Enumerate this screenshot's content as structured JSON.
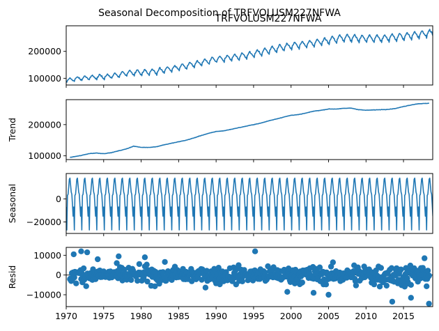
{
  "figure": {
    "suptitle": "Seasonal Decomposition of TRFVOLUSM227NFWA"
  },
  "chart_data": [
    {
      "type": "line",
      "title": "TRFVOLUSM227NFWA",
      "ylabel": "",
      "x_range": [
        1970,
        2018.9
      ],
      "ylim": [
        75000,
        295000
      ],
      "yticks": [
        100000,
        200000
      ],
      "ytick_labels": [
        "100000",
        "200000"
      ],
      "series": [
        {
          "x": [
            1970,
            1972,
            1974,
            1976,
            1978,
            1980,
            1982,
            1985,
            1988,
            1990,
            1993,
            1995,
            1998,
            2000,
            2003,
            2005,
            2007,
            2009,
            2012,
            2015,
            2018.8
          ],
          "values": [
            92000,
            100000,
            104000,
            108000,
            118000,
            122000,
            125000,
            140000,
            158000,
            170000,
            180000,
            190000,
            210000,
            220000,
            230000,
            240000,
            250000,
            248000,
            248000,
            255000,
            268000
          ],
          "seasonal_amplitude": [
            14000,
            16000,
            18000,
            18000,
            20000,
            22000,
            22000,
            22000,
            24000,
            24000,
            24000,
            26000,
            26000,
            26000,
            26000,
            28000,
            28000,
            28000,
            28000,
            28000,
            28000
          ]
        }
      ]
    },
    {
      "type": "line",
      "title": "",
      "ylabel": "Trend",
      "x_range": [
        1970,
        2018.9
      ],
      "ylim": [
        88000,
        280000
      ],
      "yticks": [
        100000,
        200000
      ],
      "ytick_labels": [
        "100000",
        "200000"
      ],
      "series": [
        {
          "x": [
            1970.5,
            1972,
            1973,
            1974,
            1975,
            1976,
            1977,
            1978,
            1979,
            1980,
            1981,
            1982,
            1983,
            1984,
            1985,
            1986,
            1987,
            1988,
            1989,
            1990,
            1991,
            1992,
            1993,
            1994,
            1995,
            1996,
            1997,
            1998,
            1999,
            2000,
            2001,
            2002,
            2003,
            2004,
            2005,
            2006,
            2007,
            2008,
            2009,
            2010,
            2011,
            2012,
            2013,
            2014,
            2015,
            2016,
            2017,
            2018.3
          ],
          "values": [
            95000,
            101000,
            107000,
            109000,
            107000,
            110000,
            116000,
            122000,
            131000,
            127000,
            127000,
            129000,
            135000,
            140000,
            145000,
            150000,
            157000,
            165000,
            172000,
            178000,
            180000,
            185000,
            190000,
            195000,
            200000,
            205000,
            212000,
            218000,
            224000,
            230000,
            232000,
            237000,
            243000,
            246000,
            250000,
            250000,
            252000,
            253000,
            248000,
            246000,
            247000,
            248000,
            249000,
            252000,
            258000,
            263000,
            267000,
            268000
          ]
        }
      ]
    },
    {
      "type": "line",
      "title": "",
      "ylabel": "Seasonal",
      "x_range": [
        1970,
        2018.9
      ],
      "ylim": [
        -30000,
        22000
      ],
      "yticks": [
        -20000,
        0
      ],
      "ytick_labels": [
        "−20000",
        "0"
      ],
      "series": [
        {
          "monthly_pattern": [
            -7000,
            -27000,
            3000,
            4000,
            10000,
            17000,
            18000,
            12000,
            6000,
            4000,
            -5000,
            -15000
          ]
        }
      ]
    },
    {
      "type": "scatter",
      "title": "",
      "ylabel": "Resid",
      "x_range": [
        1970,
        2018.9
      ],
      "ylim": [
        -16000,
        14000
      ],
      "yticks": [
        -10000,
        0,
        10000
      ],
      "ytick_labels": [
        "−10000",
        "0",
        "10000"
      ],
      "zero_line": true,
      "series": [
        {
          "typical_spread": 3500,
          "highlights": [
            {
              "x": 1971.0,
              "y": 10500
            },
            {
              "x": 1972.0,
              "y": 12000
            },
            {
              "x": 1972.8,
              "y": 11500
            },
            {
              "x": 1974.2,
              "y": 8000
            },
            {
              "x": 1977.0,
              "y": 9500
            },
            {
              "x": 1980.5,
              "y": 9000
            },
            {
              "x": 1995.2,
              "y": 12000
            },
            {
              "x": 2013.5,
              "y": -13500
            },
            {
              "x": 2018.4,
              "y": -14500
            },
            {
              "x": 2016.0,
              "y": -11500
            },
            {
              "x": 2005.0,
              "y": -10000
            },
            {
              "x": 1999.5,
              "y": -8500
            },
            {
              "x": 2003.0,
              "y": -9000
            },
            {
              "x": 2017.8,
              "y": 8500
            }
          ]
        }
      ]
    }
  ],
  "x_axis": {
    "ticks": [
      1970,
      1975,
      1980,
      1985,
      1990,
      1995,
      2000,
      2005,
      2010,
      2015
    ],
    "tick_labels": [
      "1970",
      "1975",
      "1980",
      "1985",
      "1990",
      "1995",
      "2000",
      "2005",
      "2010",
      "2015"
    ]
  }
}
